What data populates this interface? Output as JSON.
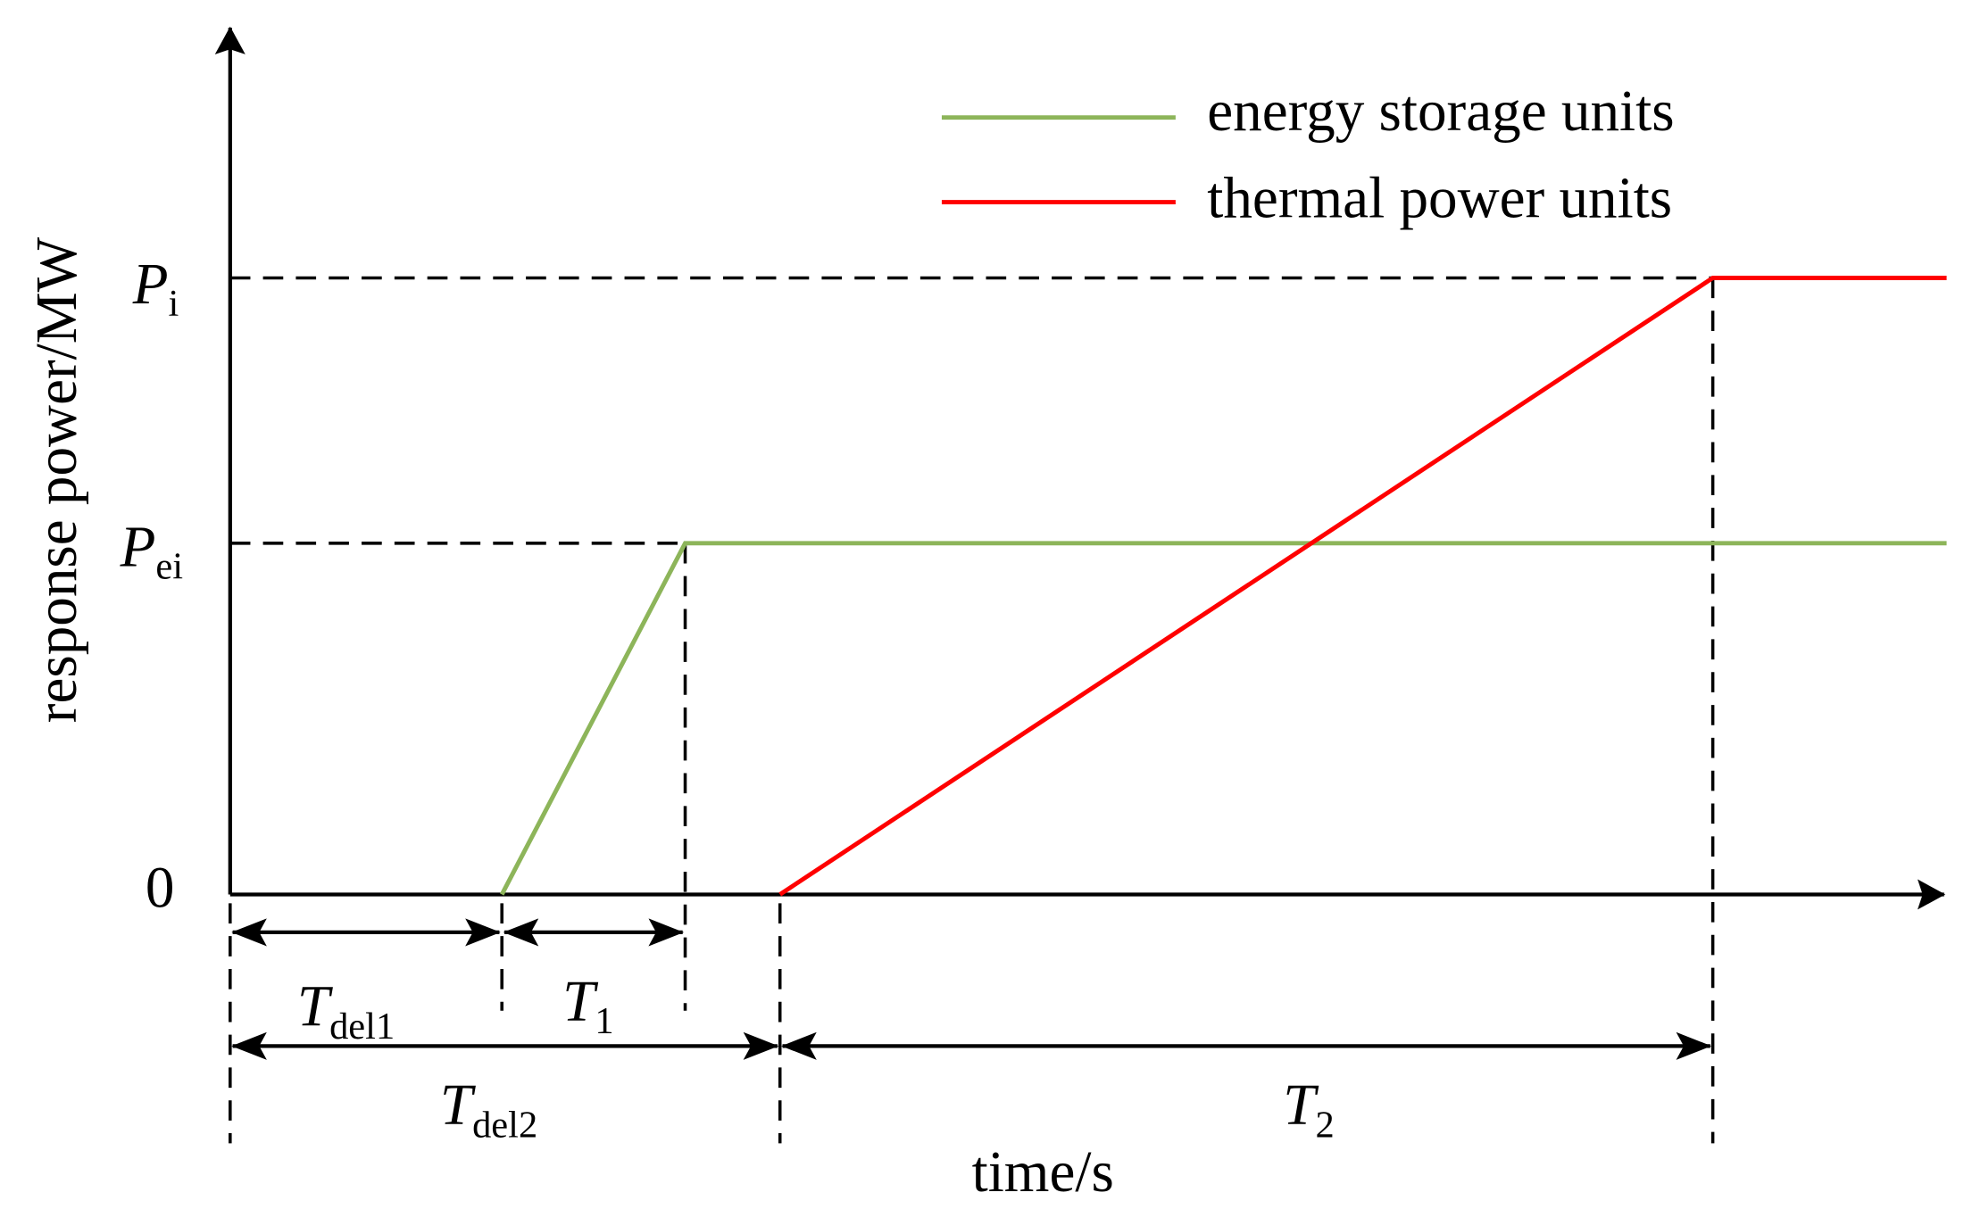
{
  "axes": {
    "y_label": "response power/MW",
    "x_label": "time/s"
  },
  "y_levels": [
    {
      "main": "P",
      "sub": "i"
    },
    {
      "main": "P",
      "sub": "ei"
    },
    {
      "main": "0"
    }
  ],
  "legend": [
    {
      "label": "energy storage units",
      "color": "#8db55a"
    },
    {
      "label": "thermal power units",
      "color": "#ff0000"
    }
  ],
  "intervals": [
    {
      "main": "T",
      "sub": "del1"
    },
    {
      "main": "T",
      "sub": "1"
    },
    {
      "main": "T",
      "sub": "del2"
    },
    {
      "main": "T",
      "sub": "2"
    }
  ]
}
